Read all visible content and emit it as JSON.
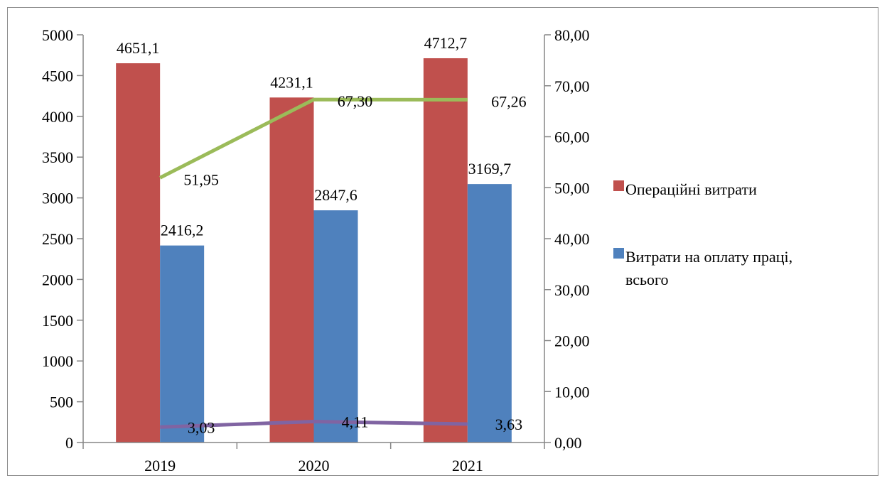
{
  "chart_data": {
    "type": "bar",
    "categories": [
      "2019",
      "2020",
      "2021"
    ],
    "series": [
      {
        "name": "Операційні витрати",
        "kind": "bar",
        "axis": "left",
        "color": "#c0504d",
        "values": [
          4651.1,
          4231.1,
          4712.7
        ],
        "labels": [
          "4651,1",
          "4231,1",
          "4712,7"
        ]
      },
      {
        "name": "Витрати на оплату праці, всього",
        "kind": "bar",
        "axis": "left",
        "color": "#4f81bd",
        "values": [
          2416.2,
          2847.6,
          3169.7
        ],
        "labels": [
          "2416,2",
          "2847,6",
          "3169,7"
        ]
      },
      {
        "kind": "line",
        "axis": "right",
        "color": "#9bbb59",
        "values": [
          51.95,
          67.3,
          67.26
        ],
        "labels": [
          "51,95",
          "67,30",
          "67,26"
        ]
      },
      {
        "kind": "line",
        "axis": "right",
        "color": "#8064a2",
        "values": [
          3.03,
          4.11,
          3.63
        ],
        "labels": [
          "3,03",
          "4,11",
          "3,63"
        ]
      }
    ],
    "left_axis": {
      "ylim": [
        0,
        5000
      ],
      "ticks": [
        "0",
        "500",
        "1000",
        "1500",
        "2000",
        "2500",
        "3000",
        "3500",
        "4000",
        "4500",
        "5000"
      ]
    },
    "right_axis": {
      "ylim": [
        0,
        80
      ],
      "ticks": [
        "0,00",
        "10,00",
        "20,00",
        "30,00",
        "40,00",
        "50,00",
        "60,00",
        "70,00",
        "80,00"
      ]
    },
    "legend": {
      "position": "right",
      "entries": [
        {
          "label_lines": [
            "Операційні витрати"
          ],
          "color": "#c0504d"
        },
        {
          "label_lines": [
            "Витрати на оплату праці,",
            "всього"
          ],
          "color": "#4f81bd"
        }
      ]
    },
    "grid": false
  }
}
